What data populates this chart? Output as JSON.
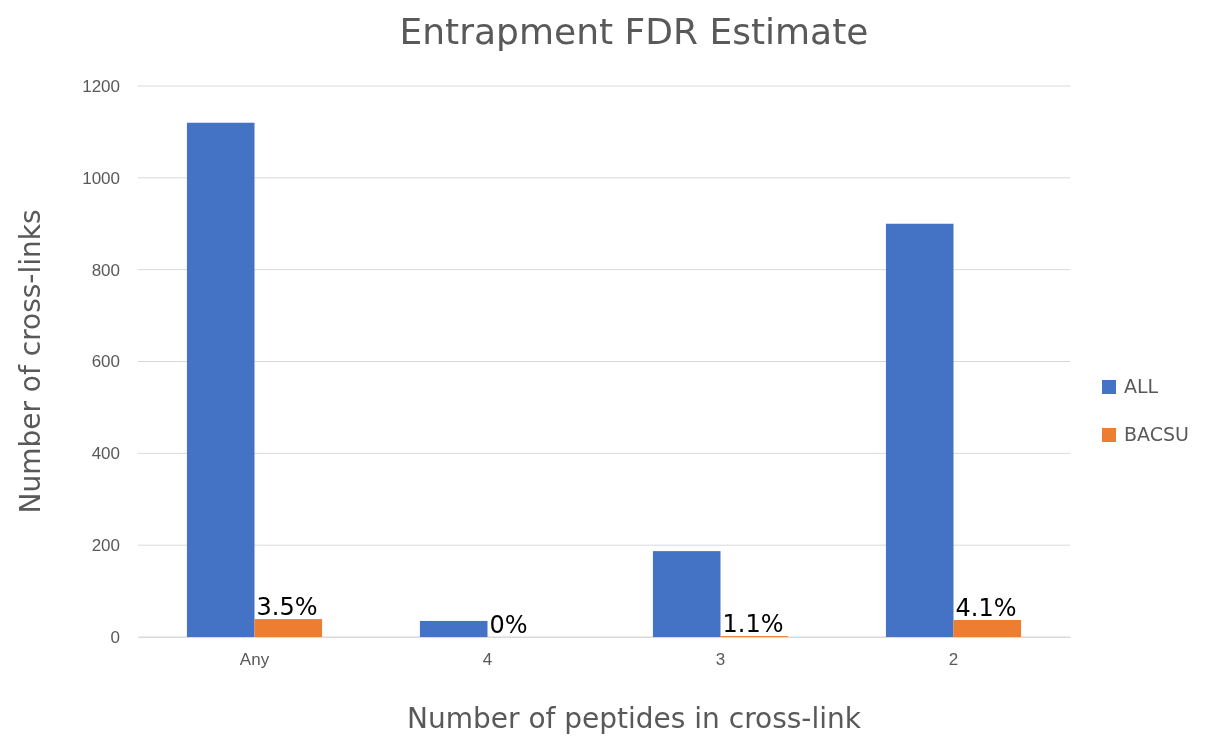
{
  "chart_data": {
    "type": "bar",
    "title": "Entrapment FDR Estimate",
    "xlabel": "Number of peptides in cross-link",
    "ylabel": "Number of cross-links",
    "categories": [
      "Any",
      "4",
      "3",
      "2"
    ],
    "series": [
      {
        "name": "ALL",
        "color": "#4472c4",
        "values": [
          1120,
          35,
          187,
          900
        ]
      },
      {
        "name": "BACSU",
        "color": "#ed7d31",
        "values": [
          39,
          0,
          2,
          37
        ]
      }
    ],
    "annotations": [
      {
        "text": "3.5%",
        "x": "Any",
        "y": 39
      },
      {
        "text": "0%",
        "x": "4",
        "y": 0
      },
      {
        "text": "1.1%",
        "x": "3",
        "y": 2
      },
      {
        "text": "4.1%",
        "x": "2",
        "y": 37
      }
    ],
    "ylim": [
      0,
      1200
    ],
    "yticks": [
      0,
      200,
      400,
      600,
      800,
      1000,
      1200
    ],
    "grid": "y",
    "legend": "right"
  }
}
